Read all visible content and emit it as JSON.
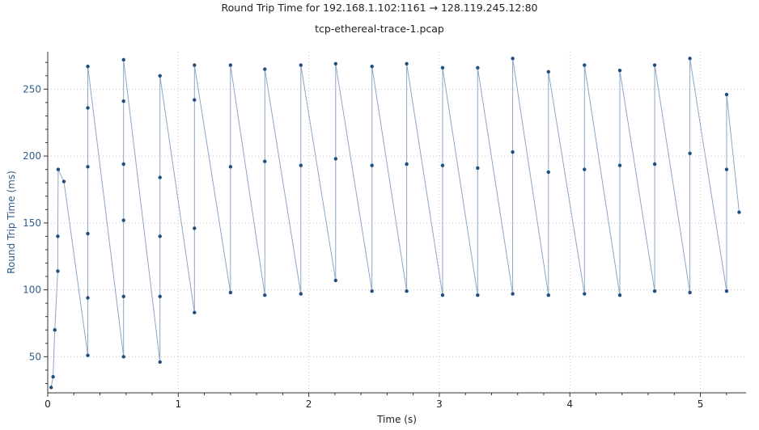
{
  "chart_data": {
    "type": "line",
    "title": "Round Trip Time for 192.168.1.102:1161 → 128.119.245.12:80",
    "subtitle": "tcp-ethereal-trace-1.pcap",
    "xlabel": "Time (s)",
    "ylabel": "Round Trip Time (ms)",
    "xlim": [
      0,
      5.35
    ],
    "ylim": [
      23,
      278
    ],
    "xticks": [
      0,
      1,
      2,
      3,
      4,
      5
    ],
    "yticks": [
      50,
      100,
      150,
      200,
      250
    ],
    "grid": true,
    "line_color": "#8ea7c6",
    "marker_color": "#1f4e7e",
    "series": [
      {
        "name": "RTT",
        "x": [
          0.026,
          0.041,
          0.054,
          0.077,
          0.077,
          0.08,
          0.124,
          0.307,
          0.307,
          0.307,
          0.307,
          0.307,
          0.307,
          0.581,
          0.581,
          0.581,
          0.581,
          0.581,
          0.581,
          0.86,
          0.86,
          0.86,
          0.86,
          0.86,
          1.124,
          1.124,
          1.124,
          1.124,
          1.4,
          1.4,
          1.4,
          1.663,
          1.663,
          1.663,
          1.939,
          1.939,
          1.939,
          2.206,
          2.206,
          2.206,
          2.484,
          2.484,
          2.484,
          2.75,
          2.75,
          2.75,
          3.025,
          3.025,
          3.025,
          3.294,
          3.294,
          3.294,
          3.562,
          3.562,
          3.562,
          3.836,
          3.836,
          3.836,
          4.112,
          4.112,
          4.112,
          4.383,
          4.383,
          4.383,
          4.65,
          4.65,
          4.65,
          4.92,
          4.92,
          4.92,
          5.201,
          5.201,
          5.201,
          5.297
        ],
        "values": [
          27,
          35,
          70,
          114,
          140,
          190,
          181,
          51,
          94,
          142,
          192,
          236,
          267,
          50,
          95,
          152,
          194,
          241,
          272,
          46,
          95,
          140,
          184,
          260,
          83,
          146,
          242,
          268,
          98,
          192,
          268,
          96,
          196,
          265,
          97,
          193,
          268,
          107,
          198,
          269,
          99,
          193,
          267,
          99,
          194,
          269,
          96,
          193,
          266,
          96,
          191,
          266,
          97,
          203,
          273,
          96,
          188,
          263,
          97,
          190,
          268,
          96,
          193,
          264,
          99,
          194,
          268,
          98,
          202,
          273,
          99,
          190,
          246,
          158
        ]
      }
    ]
  }
}
